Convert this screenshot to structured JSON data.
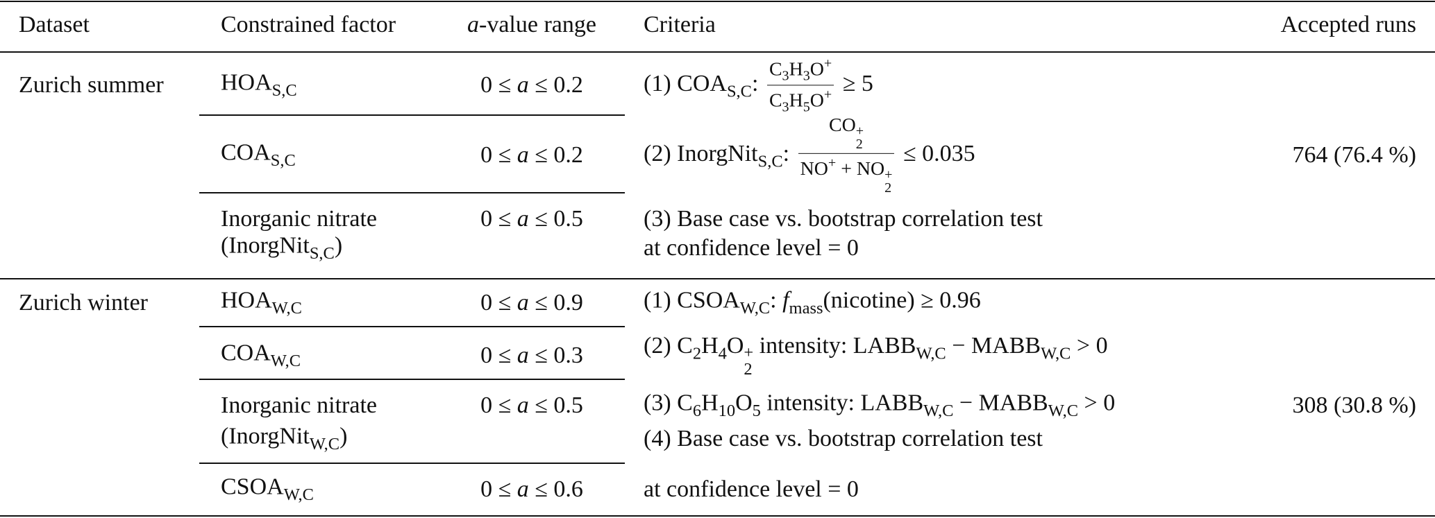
{
  "table": {
    "header": [
      [
        [
          "Dataset"
        ]
      ],
      [
        [
          "Constrained factor"
        ]
      ],
      [
        [
          {
            "i": "a"
          },
          "-value range"
        ]
      ],
      [
        [
          "Criteria"
        ]
      ],
      [
        [
          "Accepted runs"
        ]
      ]
    ],
    "groups": [
      {
        "dataset": [
          [
            "Zurich summer"
          ]
        ],
        "factors": [
          {
            "name": [
              [
                "HOA",
                {
                  "sub": "S,C"
                }
              ]
            ],
            "range": [
              [
                "0 ≤ ",
                {
                  "i": "a"
                },
                " ≤ 0.2"
              ]
            ]
          },
          {
            "name": [
              [
                "COA",
                {
                  "sub": "S,C"
                }
              ]
            ],
            "range": [
              [
                "0 ≤ ",
                {
                  "i": "a"
                },
                " ≤ 0.2"
              ]
            ]
          },
          {
            "name": [
              [
                "Inorganic nitrate"
              ],
              [
                "(InorgNit",
                {
                  "sub": "S,C"
                },
                ")"
              ]
            ],
            "range": [
              [
                "0 ≤ ",
                {
                  "i": "a"
                },
                " ≤ 0.5"
              ]
            ]
          }
        ],
        "criteria": [
          [
            "(1) COA",
            {
              "sub": "S,C"
            },
            ": ",
            {
              "frac": {
                "num": [
                  "C",
                  {
                    "sub": "3"
                  },
                  "H",
                  {
                    "sub": "3"
                  },
                  "O",
                  {
                    "sup": "+"
                  }
                ],
                "den": [
                  "C",
                  {
                    "sub": "3"
                  },
                  "H",
                  {
                    "sub": "5"
                  },
                  "O",
                  {
                    "sup": "+"
                  }
                ]
              }
            },
            " ≥ 5"
          ],
          [
            "(2) InorgNit",
            {
              "sub": "S,C"
            },
            ": ",
            {
              "frac": {
                "num": [
                  "CO",
                  {
                    "sub": "2",
                    "sup": "+"
                  }
                ],
                "den": [
                  "NO",
                  {
                    "sup": "+"
                  },
                  " + NO",
                  {
                    "sub": "2",
                    "sup": "+"
                  }
                ]
              }
            },
            " ≤ 0.035"
          ],
          [
            "(3) Base case vs. bootstrap correlation test"
          ],
          [
            "at confidence level = 0"
          ]
        ],
        "accepted": [
          [
            "764 (76.4 %)"
          ]
        ]
      },
      {
        "dataset": [
          [
            "Zurich winter"
          ]
        ],
        "factors": [
          {
            "name": [
              [
                "HOA",
                {
                  "sub": "W,C"
                }
              ]
            ],
            "range": [
              [
                "0 ≤ ",
                {
                  "i": "a"
                },
                " ≤ 0.9"
              ]
            ]
          },
          {
            "name": [
              [
                "COA",
                {
                  "sub": "W,C"
                }
              ]
            ],
            "range": [
              [
                "0 ≤ ",
                {
                  "i": "a"
                },
                " ≤ 0.3"
              ]
            ]
          },
          {
            "name": [
              [
                "Inorganic nitrate"
              ],
              [
                "(InorgNit",
                {
                  "sub": "W,C"
                },
                ")"
              ]
            ],
            "range": [
              [
                "0 ≤ ",
                {
                  "i": "a"
                },
                " ≤ 0.5"
              ]
            ]
          },
          {
            "name": [
              [
                "CSOA",
                {
                  "sub": "W,C"
                }
              ]
            ],
            "range": [
              [
                "0 ≤ ",
                {
                  "i": "a"
                },
                " ≤ 0.6"
              ]
            ]
          }
        ],
        "criteria": [
          [
            "(1) CSOA",
            {
              "sub": "W,C"
            },
            ": ",
            {
              "i": "f"
            },
            {
              "sub": "mass"
            },
            "(nicotine) ≥ 0.96"
          ],
          [
            "(2) C",
            {
              "sub": "2"
            },
            "H",
            {
              "sub": "4"
            },
            "O",
            {
              "sub": "2",
              "sup": "+"
            },
            " intensity: LABB",
            {
              "sub": "W,C"
            },
            " − MABB",
            {
              "sub": "W,C"
            },
            " > 0"
          ],
          [
            "(3) C",
            {
              "sub": "6"
            },
            "H",
            {
              "sub": "10"
            },
            "O",
            {
              "sub": "5"
            },
            " intensity: LABB",
            {
              "sub": "W,C"
            },
            " − MABB",
            {
              "sub": "W,C"
            },
            " > 0"
          ],
          [
            "(4) Base case vs. bootstrap correlation test"
          ],
          [
            "at confidence level = 0"
          ]
        ],
        "accepted": [
          [
            "308 (30.8 %)"
          ]
        ]
      }
    ]
  }
}
